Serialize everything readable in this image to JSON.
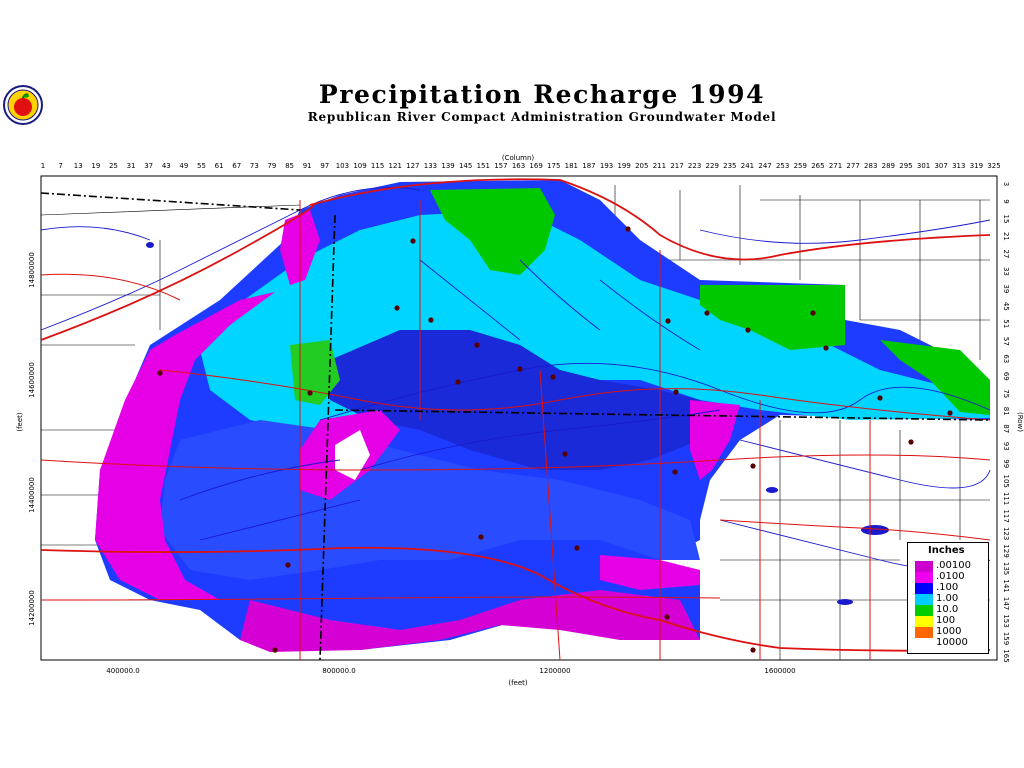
{
  "title": "Precipitation Recharge 1994",
  "subtitle": "Republican River Compact Administration Groundwater Model",
  "logo_icon": "apple-logo-icon",
  "axes": {
    "column_title": "(Column)",
    "row_title": "(Row)",
    "x_title": "(feet)",
    "y_title": "(feet)",
    "columns": [
      "1",
      "7",
      "13",
      "19",
      "25",
      "31",
      "37",
      "43",
      "49",
      "55",
      "61",
      "67",
      "73",
      "79",
      "85",
      "91",
      "97",
      "103",
      "109",
      "115",
      "121",
      "127",
      "133",
      "139",
      "145",
      "151",
      "157",
      "163",
      "169",
      "175",
      "181",
      "187",
      "193",
      "199",
      "205",
      "211",
      "217",
      "223",
      "229",
      "235",
      "241",
      "247",
      "253",
      "259",
      "265",
      "271",
      "277",
      "283",
      "289",
      "295",
      "301",
      "307",
      "313",
      "319",
      "325"
    ],
    "rows": [
      "3",
      "9",
      "15",
      "21",
      "27",
      "33",
      "39",
      "45",
      "51",
      "57",
      "63",
      "69",
      "75",
      "81",
      "87",
      "93",
      "99",
      "105",
      "111",
      "117",
      "123",
      "129",
      "135",
      "141",
      "147",
      "153",
      "159",
      "165"
    ],
    "x_ticks": [
      "400000.0",
      "800000.0",
      "1200000",
      "1600000"
    ],
    "y_ticks": [
      "14800000",
      "14600000",
      "14400000",
      "14200000"
    ]
  },
  "legend": {
    "title": "Inches",
    "items": [
      {
        "label": ".00100",
        "color": "#cc00cc"
      },
      {
        "label": ".0100",
        "color": "#ee00ee"
      },
      {
        "label": ".100",
        "color": "#0000ff"
      },
      {
        "label": "1.00",
        "color": "#00ccff"
      },
      {
        "label": "10.0",
        "color": "#00cc00"
      },
      {
        "label": "100",
        "color": "#ffff00"
      },
      {
        "label": "1000",
        "color": "#ff6600"
      },
      {
        "label": "10000",
        "color": "#ffffff"
      }
    ]
  },
  "colors": {
    "magenta": "#e600e6",
    "blue": "#1e3cff",
    "cyan": "#00e0ff",
    "green": "#00c800",
    "roads": "#dd1111",
    "rivers": "#1a1acc"
  }
}
